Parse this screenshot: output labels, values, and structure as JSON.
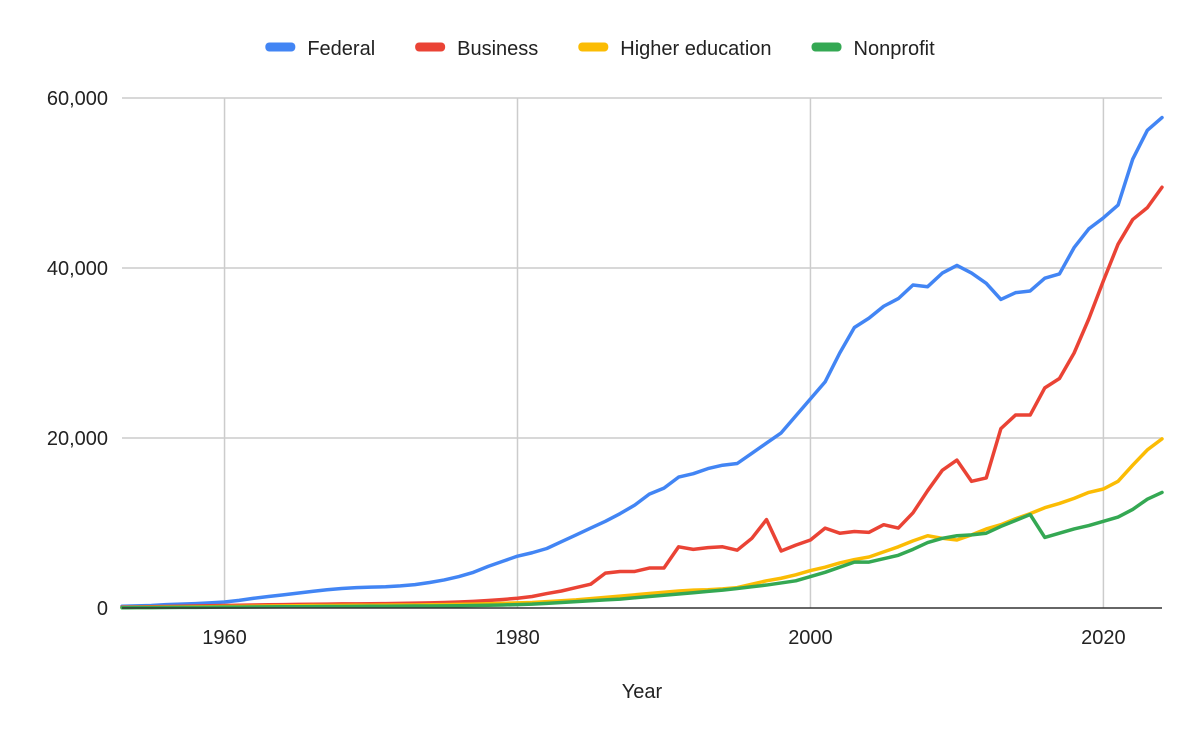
{
  "chart_data": {
    "type": "line",
    "title": "",
    "xlabel": "Year",
    "ylabel": "",
    "xlim": [
      1953,
      2024
    ],
    "ylim": [
      0,
      60000
    ],
    "x_ticks": [
      1960,
      1980,
      2000,
      2020
    ],
    "y_ticks": [
      0,
      20000,
      40000,
      60000
    ],
    "x_tick_labels": [
      "1960",
      "1980",
      "2000",
      "2020"
    ],
    "y_tick_labels": [
      "0",
      "20,000",
      "40,000",
      "60,000"
    ],
    "grid": true,
    "legend_position": "top",
    "x": [
      1953,
      1954,
      1955,
      1956,
      1957,
      1958,
      1959,
      1960,
      1961,
      1962,
      1963,
      1964,
      1965,
      1966,
      1967,
      1968,
      1969,
      1970,
      1971,
      1972,
      1973,
      1974,
      1975,
      1976,
      1977,
      1978,
      1979,
      1980,
      1981,
      1982,
      1983,
      1984,
      1985,
      1986,
      1987,
      1988,
      1989,
      1990,
      1991,
      1992,
      1993,
      1994,
      1995,
      1996,
      1997,
      1998,
      1999,
      2000,
      2001,
      2002,
      2003,
      2004,
      2005,
      2006,
      2007,
      2008,
      2009,
      2010,
      2011,
      2012,
      2013,
      2014,
      2015,
      2016,
      2017,
      2018,
      2019,
      2020,
      2021,
      2022,
      2023,
      2024
    ],
    "series": [
      {
        "name": "Federal",
        "color": "#4285F4",
        "values": [
          200,
          250,
          300,
          400,
          450,
          520,
          600,
          700,
          900,
          1150,
          1350,
          1550,
          1750,
          1950,
          2150,
          2300,
          2400,
          2450,
          2500,
          2600,
          2750,
          3000,
          3300,
          3700,
          4200,
          4900,
          5500,
          6100,
          6500,
          7000,
          7800,
          8600,
          9400,
          10200,
          11100,
          12100,
          13400,
          14100,
          15400,
          15800,
          16400,
          16800,
          17000,
          18200,
          19400,
          20600,
          22600,
          24600,
          26600,
          30000,
          33000,
          34100,
          35500,
          36400,
          38000,
          37800,
          39400,
          40300,
          39400,
          38200,
          36300,
          37100,
          37300,
          38800,
          39300,
          42400,
          44600,
          45900,
          47400,
          52800,
          56200,
          57700
        ]
      },
      {
        "name": "Business",
        "color": "#EA4335",
        "values": [
          100,
          120,
          150,
          180,
          200,
          230,
          260,
          290,
          320,
          350,
          380,
          400,
          420,
          440,
          460,
          480,
          490,
          500,
          520,
          540,
          570,
          600,
          650,
          700,
          780,
          880,
          1000,
          1150,
          1350,
          1700,
          2000,
          2400,
          2800,
          4100,
          4300,
          4300,
          4700,
          4700,
          7200,
          6900,
          7100,
          7200,
          6800,
          8200,
          10400,
          6700,
          7400,
          8000,
          9400,
          8800,
          9000,
          8900,
          9800,
          9400,
          11200,
          13800,
          16200,
          17400,
          14900,
          15300,
          21100,
          22700,
          22700,
          25900,
          27000,
          30000,
          34000,
          38500,
          42800,
          45700,
          47100,
          49500
        ]
      },
      {
        "name": "Higher education",
        "color": "#FBBC04",
        "values": [
          60,
          70,
          80,
          100,
          120,
          130,
          150,
          170,
          190,
          210,
          230,
          250,
          270,
          290,
          300,
          310,
          320,
          330,
          340,
          350,
          360,
          380,
          400,
          420,
          450,
          500,
          550,
          600,
          650,
          750,
          850,
          950,
          1100,
          1250,
          1400,
          1550,
          1700,
          1850,
          2000,
          2100,
          2150,
          2250,
          2400,
          2800,
          3200,
          3500,
          3900,
          4400,
          4800,
          5300,
          5700,
          6000,
          6600,
          7200,
          7900,
          8500,
          8200,
          8000,
          8600,
          9300,
          9800,
          10500,
          11100,
          11800,
          12300,
          12900,
          13600,
          14000,
          14900,
          16800,
          18600,
          19900
        ]
      },
      {
        "name": "Nonprofit",
        "color": "#34A853",
        "values": [
          30,
          40,
          50,
          60,
          70,
          80,
          90,
          100,
          110,
          120,
          130,
          140,
          150,
          160,
          170,
          180,
          190,
          200,
          210,
          220,
          230,
          240,
          250,
          270,
          290,
          320,
          360,
          400,
          450,
          550,
          650,
          750,
          850,
          950,
          1050,
          1200,
          1350,
          1500,
          1650,
          1800,
          1950,
          2100,
          2300,
          2500,
          2700,
          2950,
          3200,
          3700,
          4200,
          4800,
          5400,
          5400,
          5800,
          6200,
          6900,
          7700,
          8200,
          8500,
          8600,
          8800,
          9600,
          10300,
          11000,
          8300,
          8800,
          9300,
          9700,
          10200,
          10700,
          11600,
          12800,
          13600
        ]
      }
    ]
  }
}
